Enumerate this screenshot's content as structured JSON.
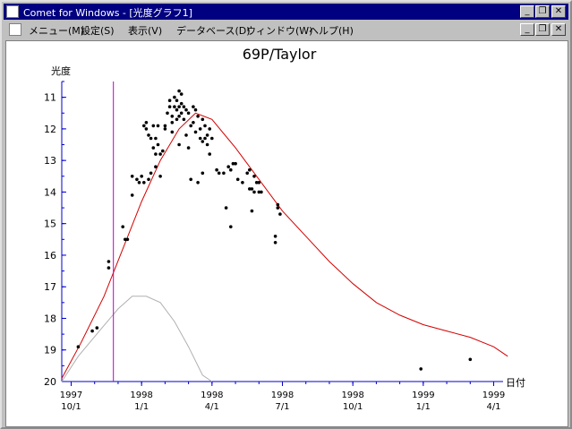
{
  "window": {
    "title": "Comet for Windows - [光度グラフ1]",
    "minimize_icon": "minimize-icon",
    "restore_icon": "restore-icon",
    "close_icon": "close-icon"
  },
  "menu": {
    "items": [
      "メニュー(M)",
      "設定(S)",
      "表示(V)",
      "データベース(D)",
      "ウィンドウ(W)",
      "ヘルプ(H)"
    ]
  },
  "chart_data": {
    "type": "scatter",
    "title": "69P/Taylor",
    "ylabel": "光度",
    "xlabel": "日付",
    "ylim": [
      20,
      10.5
    ],
    "y_ticks": [
      11,
      12,
      13,
      14,
      15,
      16,
      17,
      18,
      19,
      20
    ],
    "x_ticks": [
      {
        "line1": "1997",
        "line2": "10/1"
      },
      {
        "line1": "1998",
        "line2": "1/1"
      },
      {
        "line1": "1998",
        "line2": "4/1"
      },
      {
        "line1": "1998",
        "line2": "7/1"
      },
      {
        "line1": "1998",
        "line2": "10/1"
      },
      {
        "line1": "1999",
        "line2": "1/1"
      },
      {
        "line1": "1999",
        "line2": "4/1"
      }
    ],
    "x_range_months": [
      -0.4,
      18.4
    ],
    "marker_month": 1.8,
    "colors": {
      "fit": "#d40000",
      "secondary": "#b0b0b0",
      "marker": "#c000c0",
      "axis": "#0000cc",
      "points": "#000000"
    },
    "fit_curve": [
      [
        -0.8,
        19.9
      ],
      [
        0.4,
        18.8
      ],
      [
        1.4,
        17.3
      ],
      [
        2.2,
        15.8
      ],
      [
        3.0,
        14.3
      ],
      [
        3.8,
        13.0
      ],
      [
        4.6,
        12.0
      ],
      [
        5.3,
        11.5
      ],
      [
        6.0,
        11.7
      ],
      [
        7.0,
        12.6
      ],
      [
        8.0,
        13.6
      ],
      [
        9.0,
        14.6
      ],
      [
        10.0,
        15.4
      ],
      [
        11.0,
        16.2
      ],
      [
        12.0,
        16.9
      ],
      [
        13.0,
        17.5
      ],
      [
        14.0,
        17.9
      ],
      [
        15.0,
        18.2
      ],
      [
        16.0,
        18.4
      ],
      [
        17.0,
        18.6
      ],
      [
        18.0,
        18.9
      ],
      [
        18.6,
        19.2
      ]
    ],
    "secondary_curve": [
      [
        -0.8,
        20.0
      ],
      [
        0.3,
        19.2
      ],
      [
        1.2,
        18.4
      ],
      [
        2.0,
        17.7
      ],
      [
        2.6,
        17.3
      ],
      [
        3.2,
        17.3
      ],
      [
        3.8,
        17.5
      ],
      [
        4.4,
        18.1
      ],
      [
        5.0,
        18.9
      ],
      [
        5.6,
        19.8
      ],
      [
        6.0,
        20.4
      ]
    ],
    "points": [
      [
        0.3,
        18.9
      ],
      [
        0.9,
        18.4
      ],
      [
        1.1,
        18.3
      ],
      [
        1.6,
        16.2
      ],
      [
        1.6,
        16.4
      ],
      [
        2.2,
        15.1
      ],
      [
        2.3,
        15.5
      ],
      [
        2.4,
        15.5
      ],
      [
        2.6,
        14.1
      ],
      [
        2.6,
        13.5
      ],
      [
        2.8,
        13.6
      ],
      [
        2.9,
        13.7
      ],
      [
        3.0,
        13.5
      ],
      [
        3.1,
        13.7
      ],
      [
        3.1,
        11.9
      ],
      [
        3.2,
        12.0
      ],
      [
        3.2,
        11.8
      ],
      [
        3.3,
        12.2
      ],
      [
        3.3,
        13.6
      ],
      [
        3.4,
        13.4
      ],
      [
        3.4,
        12.3
      ],
      [
        3.5,
        12.6
      ],
      [
        3.5,
        11.9
      ],
      [
        3.6,
        12.3
      ],
      [
        3.6,
        12.8
      ],
      [
        3.6,
        13.2
      ],
      [
        3.7,
        11.9
      ],
      [
        3.7,
        12.5
      ],
      [
        3.8,
        13.5
      ],
      [
        3.8,
        12.8
      ],
      [
        3.9,
        12.7
      ],
      [
        4.0,
        11.9
      ],
      [
        4.0,
        12.0
      ],
      [
        4.1,
        11.5
      ],
      [
        4.2,
        11.1
      ],
      [
        4.2,
        11.3
      ],
      [
        4.3,
        11.6
      ],
      [
        4.3,
        11.8
      ],
      [
        4.3,
        12.1
      ],
      [
        4.4,
        11.0
      ],
      [
        4.4,
        11.3
      ],
      [
        4.5,
        11.4
      ],
      [
        4.5,
        11.1
      ],
      [
        4.5,
        11.7
      ],
      [
        4.6,
        11.3
      ],
      [
        4.6,
        11.6
      ],
      [
        4.6,
        10.8
      ],
      [
        4.6,
        12.5
      ],
      [
        4.7,
        11.2
      ],
      [
        4.7,
        10.9
      ],
      [
        4.7,
        11.5
      ],
      [
        4.8,
        11.3
      ],
      [
        4.8,
        11.7
      ],
      [
        4.9,
        11.4
      ],
      [
        4.9,
        12.2
      ],
      [
        5.0,
        11.5
      ],
      [
        5.0,
        12.6
      ],
      [
        5.1,
        11.9
      ],
      [
        5.1,
        13.6
      ],
      [
        5.2,
        11.3
      ],
      [
        5.2,
        11.8
      ],
      [
        5.3,
        11.4
      ],
      [
        5.3,
        12.1
      ],
      [
        5.4,
        13.7
      ],
      [
        5.4,
        11.6
      ],
      [
        5.5,
        12.0
      ],
      [
        5.5,
        12.3
      ],
      [
        5.6,
        11.7
      ],
      [
        5.6,
        12.4
      ],
      [
        5.6,
        13.4
      ],
      [
        5.7,
        12.3
      ],
      [
        5.7,
        11.9
      ],
      [
        5.8,
        12.2
      ],
      [
        5.8,
        12.5
      ],
      [
        5.9,
        12.0
      ],
      [
        5.9,
        12.8
      ],
      [
        6.0,
        12.3
      ],
      [
        6.2,
        13.3
      ],
      [
        6.3,
        13.4
      ],
      [
        6.5,
        13.4
      ],
      [
        6.6,
        14.5
      ],
      [
        6.7,
        13.2
      ],
      [
        6.8,
        13.3
      ],
      [
        6.8,
        15.1
      ],
      [
        6.9,
        13.1
      ],
      [
        7.0,
        13.1
      ],
      [
        7.1,
        13.6
      ],
      [
        7.3,
        13.7
      ],
      [
        7.5,
        13.4
      ],
      [
        7.6,
        13.3
      ],
      [
        7.6,
        13.9
      ],
      [
        7.7,
        14.6
      ],
      [
        7.7,
        13.9
      ],
      [
        7.8,
        13.5
      ],
      [
        7.8,
        14.0
      ],
      [
        7.9,
        13.7
      ],
      [
        8.0,
        14.0
      ],
      [
        8.0,
        13.7
      ],
      [
        8.1,
        14.0
      ],
      [
        8.7,
        15.4
      ],
      [
        8.7,
        15.6
      ],
      [
        8.8,
        14.4
      ],
      [
        8.8,
        14.5
      ],
      [
        8.9,
        14.7
      ],
      [
        14.9,
        19.6
      ],
      [
        17.0,
        19.3
      ]
    ]
  }
}
